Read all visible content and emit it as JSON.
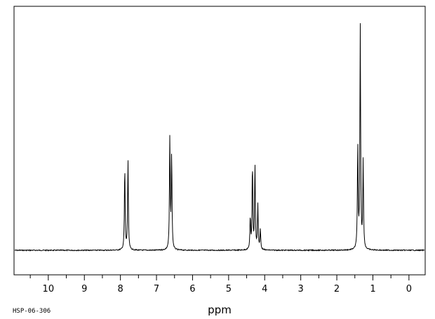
{
  "chart_data": {
    "type": "line",
    "xlabel": "ppm",
    "ylabel": "",
    "xlim": [
      10.95,
      -0.45
    ],
    "x_reversed": true,
    "ylim": [
      0,
      1
    ],
    "x_ticks": [
      10,
      9,
      8,
      7,
      6,
      5,
      4,
      3,
      2,
      1,
      0
    ],
    "grid": false,
    "legend": "none",
    "series": [
      {
        "peaks": [
          {
            "ppm": 7.88,
            "height": 0.37
          },
          {
            "ppm": 7.79,
            "height": 0.4
          },
          {
            "ppm": 6.63,
            "height": 0.5
          },
          {
            "ppm": 6.58,
            "height": 0.42
          },
          {
            "ppm": 4.4,
            "height": 0.14
          },
          {
            "ppm": 4.34,
            "height": 0.38
          },
          {
            "ppm": 4.27,
            "height": 0.38
          },
          {
            "ppm": 4.19,
            "height": 0.2
          },
          {
            "ppm": 4.12,
            "height": 0.09
          },
          {
            "ppm": 1.42,
            "height": 0.46
          },
          {
            "ppm": 1.35,
            "height": 1.0
          },
          {
            "ppm": 1.27,
            "height": 0.4
          }
        ]
      }
    ],
    "colors": {
      "line": "#000000",
      "frame": "#000000",
      "background": "#ffffff"
    }
  },
  "footer": {
    "code": "HSP-06-306"
  }
}
